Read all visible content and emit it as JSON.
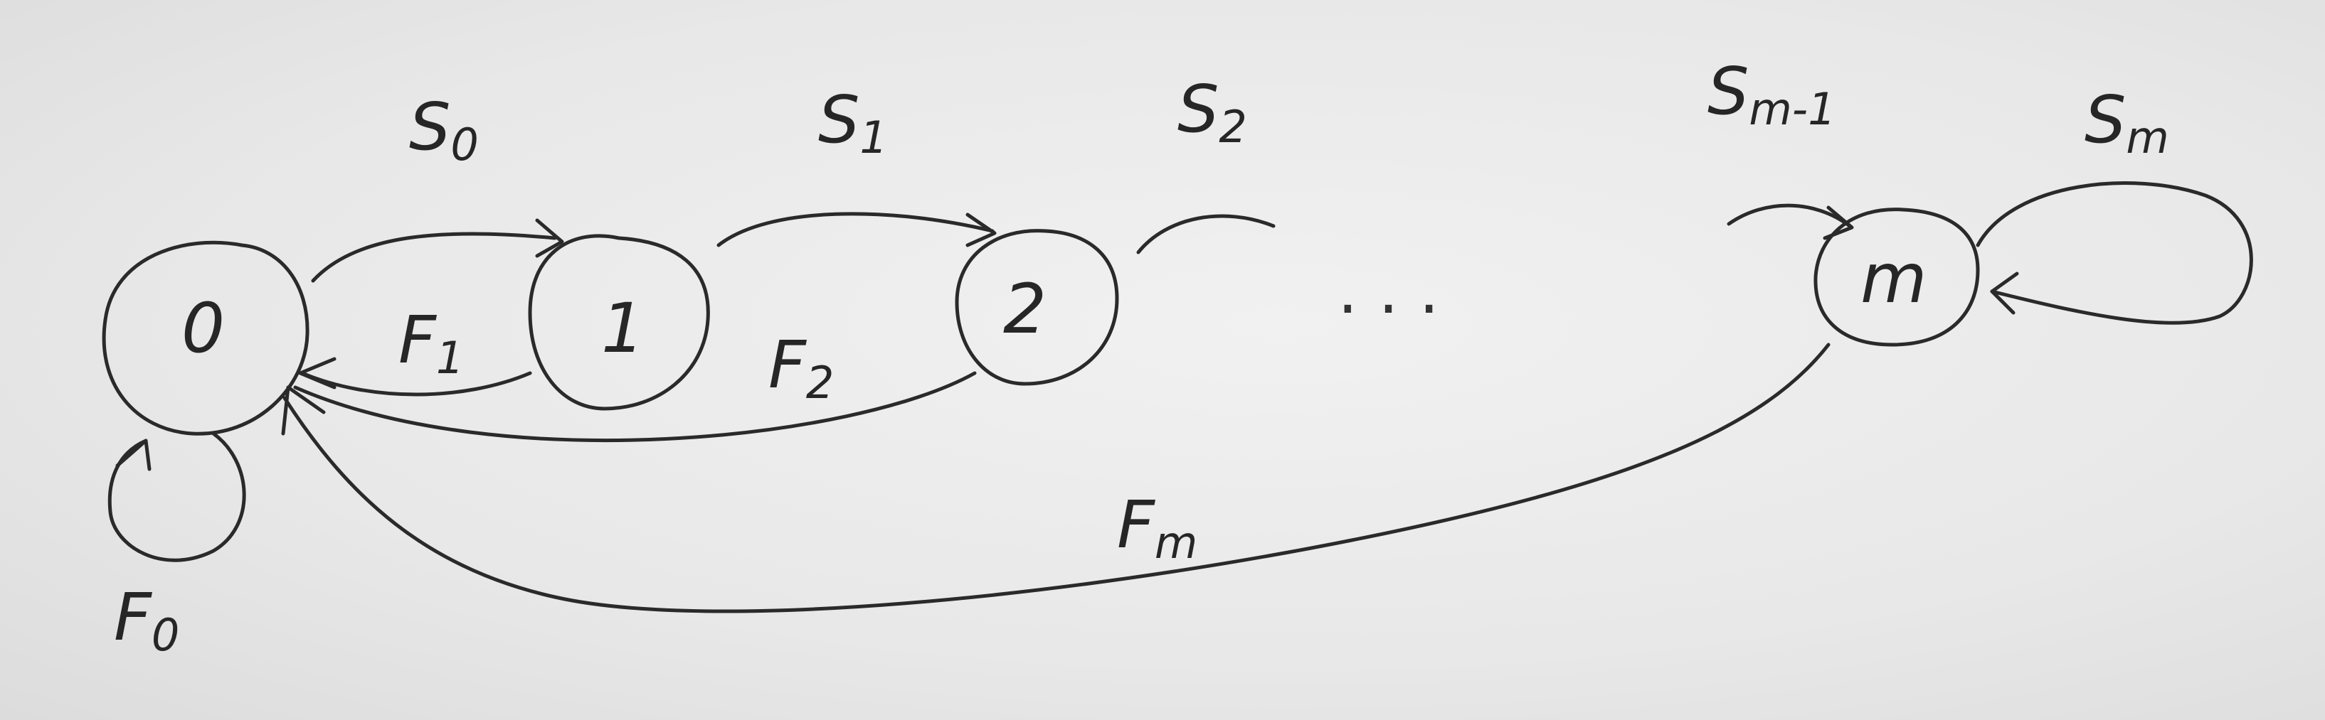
{
  "nodes": {
    "n0": "0",
    "n1": "1",
    "n2": "2",
    "nm": "m"
  },
  "ellipsis": ". . .",
  "edges": {
    "s0": {
      "base": "S",
      "sub": "0"
    },
    "s1": {
      "base": "S",
      "sub": "1"
    },
    "s2": {
      "base": "S",
      "sub": "2"
    },
    "sm1": {
      "base": "S",
      "sub": "m-1"
    },
    "sm": {
      "base": "S",
      "sub": "m"
    },
    "f0": {
      "base": "F",
      "sub": "0"
    },
    "f1": {
      "base": "F",
      "sub": "1"
    },
    "f2": {
      "base": "F",
      "sub": "2"
    },
    "fm": {
      "base": "F",
      "sub": "m"
    }
  },
  "colors": {
    "ink": "#2a2a2a",
    "paper": "#ececec"
  }
}
